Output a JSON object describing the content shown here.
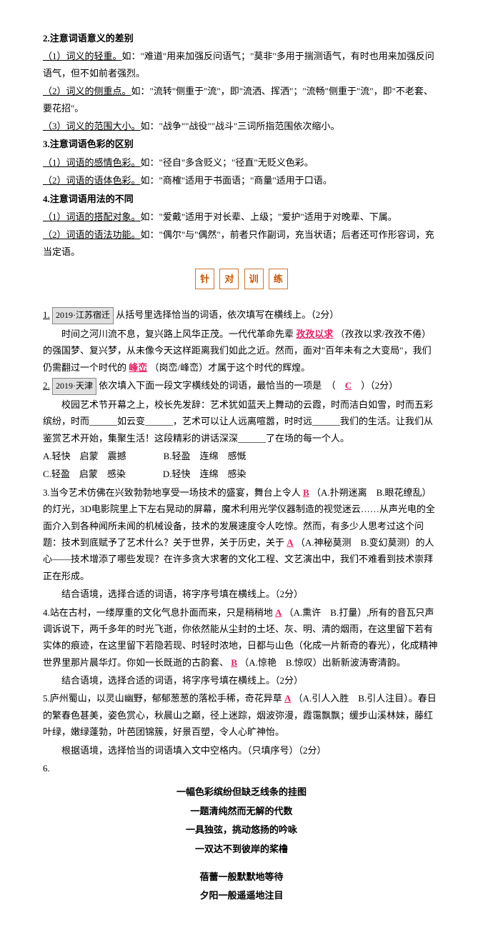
{
  "top": {
    "h2": "2.注意词语意义的差别",
    "l1_head": "（1）词义的轻重。",
    "l1_body": "如：\"难道\"用来加强反问语气；\"莫非\"多用于揣测语气，有时也用来加强反问语气，但不如前者强烈。",
    "l2_head": "（2）词义的侧重点。",
    "l2_body": "如：\"流转\"侧重于\"流\"，即\"流洒、挥洒\"；\"流畅\"侧重于\"流\"，即\"不老套、要花招\"。",
    "l3_head": "（3）词义的范围大小。",
    "l3_body": "如：\"战争\"\"战役\"\"战斗\"三词所指范围依次缩小。",
    "h3": "3.注意词语色彩的区别",
    "l4_head": "（1）词语的感情色彩。",
    "l4_body": "如：\"径自\"多含贬义；\"径直\"无贬义色彩。",
    "l5_head": "（2）词语的语体色彩。",
    "l5_body": "如：\"商榷\"适用于书面语；\"商量\"适用于口语。",
    "h4": "4.注意词语用法的不同",
    "l6_head": "（1）词语的搭配对象。",
    "l6_body": "如：\"爱戴\"适用于对长辈、上级；\"爱护\"适用于对晚辈、下属。",
    "l7_head": "（2）词语的语法功能。",
    "l7_body": "如：\"偶尔\"与\"偶然\"，前者只作副词，充当状语；后者还可作形容词，充当定语。"
  },
  "boxtitle": [
    "针",
    "对",
    "训",
    "练"
  ],
  "q1": {
    "num": "1.",
    "tag": "2019·江苏宿迁",
    "stem": "从括号里选择恰当的词语，依次填写在横线上。（2分）",
    "body1": "时间之河川流不息，复兴路上风华正茂。一代代革命先辈",
    "ans1": "孜孜以求",
    "body2": "（孜孜以求/孜孜不倦）的强国梦、复兴梦，从未像今天这样距离我们如此之近。然而，面对\"百年未有之大变局\"，我们仍需翻过一个时代的",
    "ans2": "峰峦",
    "body3": "（岗峦/峰峦）才属于这个时代的辉煌。"
  },
  "q2": {
    "num": "2.",
    "tag": "2019·天津",
    "stem": "依次填入下面一段文字横线处的词语，最恰当的一项是　（　",
    "ans": "C",
    "stem2": "　）（2分）",
    "para": "校园艺术节开幕之上，校长先发辞：艺术犹如蓝天上舞动的云霞，时而洁白如雪，时而五彩缤纷，时而______如云变______，艺术可以让人远离喧嚣，时时远______我们的生活。让我们从鉴赏艺术开始，集聚生活！这段精彩的讲话深深______了在场的每一个人。",
    "optA": "A.轻快　启蒙　震撼　　　　B.轻盈　连绵　感慨",
    "optB": "C.轻盈　启蒙　感染　　　　D.轻快　连绵　感染"
  },
  "q3": {
    "num": "3.",
    "pre": "当今艺术仿佛在兴致勃勃地享受一场技术的盛宴，舞台上令人",
    "ans1": "B",
    "mid1": "（A.扑朔迷离　B.眼花缭乱）的灯光，3D电影院里上下左右晃动的屏幕，魔术利用光学仪器制造的视觉迷云……从声光电的全面介入到各种闻所未闻的机械设备，技术的发展速度令人吃惊。然而，有多少人思考过这个问题：技术到底赋予了艺术什么？关于世界，关于历史，关于",
    "ans2": "A",
    "mid2": "（A.神秘莫测　B.变幻莫测）的人心——技术增添了哪些发现？在许多贪大求奢的文化工程、文艺演出中，我们不难看到技术崇拜正在形成。",
    "tail": "结合语境，选择合适的词语，将字序号填在横线上。（2分）"
  },
  "q4": {
    "num": "4.",
    "pre": "站在古村，一缕厚重的文化气息扑面而来，只是稍稍地",
    "ans1": "A",
    "mid1": "（A.熏许　B.打量）,所有的音瓦只声调诉说下，两千多年的时光飞逝，你依然能从尘封的土坯、灰、明、清的烟雨，在这里留下若有实体的痕迹，在这里留下若隐若现、时轻时浓地，日都与山色（化成一片新奇的春光），化成精神世界里那片晨华灯。你如一长既逝的古韵套、",
    "ans2": "B",
    "mid2": "（A.惊艳　B.惊叹）出新新波涛寄清韵。",
    "tail": "结合语境，选择合适的词语，将字序号填在横线上。（2分）"
  },
  "q5": {
    "num": "5.",
    "pre": "庐州蜀山，以灵山幽野，郁郁葱葱的落松手稀，奇花异草",
    "ans1": "A",
    "mid1": "（A.引人入胜　B.引人注目）。春日的繁春色甚美，姿色赏心，秋晨山之巅，径上迷踪，烟波弥漫，霞霭飘飘；缓步山溪林妹，藤红叶绿，嫩绿蓬勃，叶芭团锦簇，好景百塑，令人心旷神怡。",
    "tail": "根据语境，选择恰当的词语填入文中空格内。（只填序号）（2分）"
  },
  "q6": {
    "num": "6.",
    "poem": [
      "一幅色彩缤纷但缺乏线条的挂图",
      "一题清纯然而无解的代数",
      "一具独弦，挑动悠扬的吟咏",
      "一双达不到彼岸的桨橹",
      "",
      "蓓蕾一般默默地等待",
      "夕阳一般遥遥地注目"
    ]
  }
}
